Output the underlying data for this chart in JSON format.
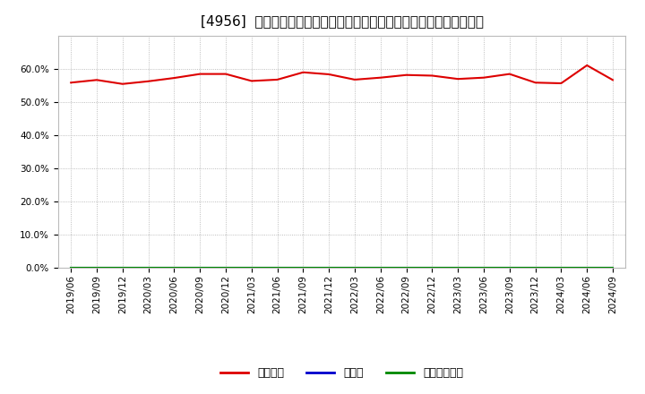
{
  "title": "[4956]  自己資本、のれん、繰延税金資産の総資産に対する比率の推移",
  "x_labels": [
    "2019/06",
    "2019/09",
    "2019/12",
    "2020/03",
    "2020/06",
    "2020/09",
    "2020/12",
    "2021/03",
    "2021/06",
    "2021/09",
    "2021/12",
    "2022/03",
    "2022/06",
    "2022/09",
    "2022/12",
    "2023/03",
    "2023/06",
    "2023/09",
    "2023/12",
    "2024/03",
    "2024/06",
    "2024/09"
  ],
  "equity_ratio": [
    0.558,
    0.566,
    0.554,
    0.562,
    0.572,
    0.584,
    0.584,
    0.563,
    0.567,
    0.589,
    0.583,
    0.567,
    0.573,
    0.581,
    0.579,
    0.569,
    0.573,
    0.584,
    0.558,
    0.556,
    0.61,
    0.566
  ],
  "goodwill_ratio": [
    0.0,
    0.0,
    0.0,
    0.0,
    0.0,
    0.0,
    0.0,
    0.0,
    0.0,
    0.0,
    0.0,
    0.0,
    0.0,
    0.0,
    0.0,
    0.0,
    0.0,
    0.0,
    0.0,
    0.0,
    0.0,
    0.0
  ],
  "deferred_tax_ratio": [
    0.0,
    0.0,
    0.0,
    0.0,
    0.0,
    0.0,
    0.0,
    0.0,
    0.0,
    0.0,
    0.0,
    0.0,
    0.0,
    0.0,
    0.0,
    0.0,
    0.0,
    0.0,
    0.0,
    0.0,
    0.0,
    0.0
  ],
  "equity_color": "#dd0000",
  "goodwill_color": "#0000cc",
  "deferred_tax_color": "#008800",
  "bg_color": "#ffffff",
  "plot_bg_color": "#ffffff",
  "grid_color": "#aaaaaa",
  "ylim": [
    0.0,
    0.7
  ],
  "yticks": [
    0.0,
    0.1,
    0.2,
    0.3,
    0.4,
    0.5,
    0.6
  ],
  "legend_labels": [
    "自己資本",
    "のれん",
    "繰延税金資産"
  ],
  "title_fontsize": 11,
  "tick_fontsize": 7.5,
  "legend_fontsize": 9
}
